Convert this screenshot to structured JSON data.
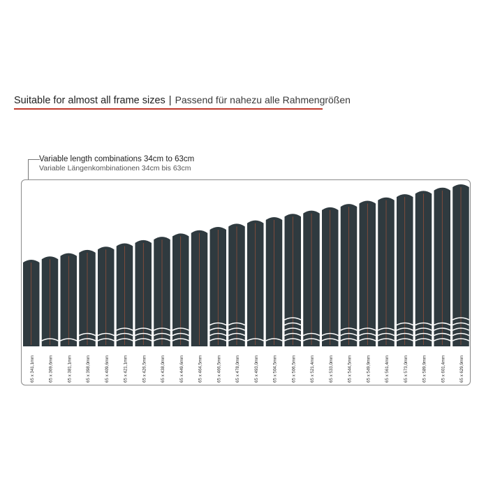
{
  "heading": {
    "en": "Suitable for almost all frame sizes",
    "separator": "|",
    "de": "Passend für nahezu alle Rahmengrößen",
    "accent_color": "#c0392b"
  },
  "subheading": {
    "en": "Variable length combinations 34cm to 63cm",
    "de": "Variable Längenkombinationen 34cm bis 63cm"
  },
  "colors": {
    "strip": "#2f3a3f",
    "center_line": "#b0563a",
    "segment_line": "#ffffff"
  },
  "strips": [
    {
      "label": "65 x 341,1mm",
      "segments": 0
    },
    {
      "label": "65 x 369,6mm",
      "segments": 1
    },
    {
      "label": "65 x 381,1mm",
      "segments": 1
    },
    {
      "label": "65 x 398,0mm",
      "segments": 2
    },
    {
      "label": "65 x 409,6mm",
      "segments": 2
    },
    {
      "label": "65 x 421,1mm",
      "segments": 3
    },
    {
      "label": "65 x 426,5mm",
      "segments": 3
    },
    {
      "label": "65 x 438,0mm",
      "segments": 3
    },
    {
      "label": "65 x 449,6mm",
      "segments": 3
    },
    {
      "label": "65 x 464,5mm",
      "segments": 0
    },
    {
      "label": "65 x 466,5mm",
      "segments": 4
    },
    {
      "label": "65 x 478,0mm",
      "segments": 4
    },
    {
      "label": "65 x 493,0mm",
      "segments": 1
    },
    {
      "label": "65 x 504,5mm",
      "segments": 1
    },
    {
      "label": "65 x 506,5mm",
      "segments": 5
    },
    {
      "label": "65 x 521,4mm",
      "segments": 2
    },
    {
      "label": "65 x 533,0mm",
      "segments": 2
    },
    {
      "label": "65 x 544,5mm",
      "segments": 3
    },
    {
      "label": "65 x 549,9mm",
      "segments": 3
    },
    {
      "label": "65 x 561,4mm",
      "segments": 3
    },
    {
      "label": "65 x 573,0mm",
      "segments": 4
    },
    {
      "label": "65 x 589,9mm",
      "segments": 4
    },
    {
      "label": "65 x 601,4mm",
      "segments": 4
    },
    {
      "label": "65 x 629,9mm",
      "segments": 5
    }
  ]
}
